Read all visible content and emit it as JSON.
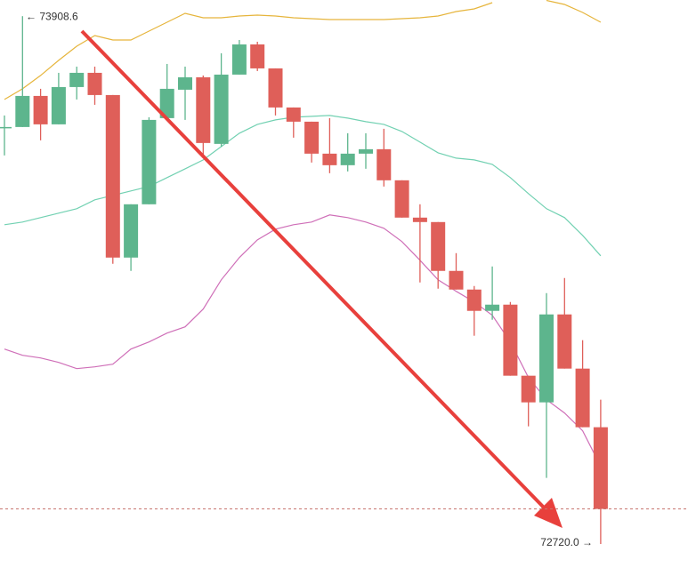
{
  "chart_data": {
    "type": "candlestick",
    "up_color": "#5db58d",
    "down_color": "#df5f59",
    "ylim": [
      72666,
      73945
    ],
    "open": [
      73657,
      73659,
      73729,
      73665,
      73749,
      73781,
      73731,
      73365,
      73485,
      73679,
      73743,
      73771,
      73621,
      73777,
      73845,
      73791,
      73703,
      73671,
      73599,
      73573,
      73599,
      73609,
      73539,
      73455,
      73445,
      73335,
      73293,
      73245,
      73259,
      73099,
      73039,
      73237,
      73115,
      72983
    ],
    "high": [
      73685,
      73908.6,
      73745,
      73781,
      73795,
      73795,
      73731,
      73485,
      73681,
      73801,
      73795,
      73775,
      73825,
      73855,
      73851,
      73791,
      73703,
      73671,
      73679,
      73645,
      73645,
      73655,
      73539,
      73485,
      73445,
      73375,
      73301,
      73345,
      73265,
      73099,
      73285,
      73319,
      73179,
      73045
    ],
    "low": [
      73595,
      73659,
      73629,
      73665,
      73721,
      73709,
      73351,
      73335,
      73485,
      73675,
      73675,
      73595,
      73615,
      73777,
      73785,
      73685,
      73635,
      73579,
      73555,
      73559,
      73565,
      73525,
      73455,
      73309,
      73295,
      73293,
      73189,
      73225,
      73099,
      72985,
      72869,
      73115,
      72983,
      72720.0
    ],
    "close": [
      73659,
      73729,
      73665,
      73749,
      73781,
      73731,
      73365,
      73485,
      73675,
      73745,
      73771,
      73623,
      73777,
      73845,
      73791,
      73703,
      73671,
      73599,
      73573,
      73599,
      73609,
      73539,
      73455,
      73445,
      73335,
      73293,
      73245,
      73259,
      73099,
      73039,
      73237,
      73115,
      72983,
      72799
    ],
    "series": [
      {
        "color": "#e6b53c",
        "values": [
          73721,
          73745,
          73775,
          73809,
          73841,
          73865,
          73855,
          73855,
          73875,
          73895,
          73915,
          73905,
          73905,
          73909,
          73911,
          73909,
          73905,
          73903,
          73901,
          73901,
          73901,
          73901,
          73903,
          73905,
          73909,
          73919,
          73925,
          73939,
          null,
          null,
          73944,
          73935,
          73917,
          73895
        ]
      },
      {
        "color": "#72d1b2",
        "values": [
          73439,
          73445,
          73455,
          73465,
          73475,
          73495,
          73505,
          73515,
          73525,
          73545,
          73565,
          73585,
          73615,
          73645,
          73665,
          73675,
          73681,
          73683,
          73685,
          73679,
          73671,
          73665,
          73649,
          73625,
          73601,
          73589,
          73585,
          73575,
          73545,
          73509,
          73475,
          73455,
          73415,
          73369
        ]
      },
      {
        "color": "#cf6fb8",
        "values": [
          73159,
          73145,
          73139,
          73129,
          73115,
          73119,
          73125,
          73159,
          73175,
          73195,
          73209,
          73249,
          73315,
          73365,
          73405,
          73429,
          73439,
          73445,
          73461,
          73455,
          73445,
          73431,
          73401,
          73359,
          73315,
          73289,
          73265,
          73235,
          73175,
          73095,
          73045,
          73015,
          72975,
          72895
        ]
      }
    ],
    "annotations": [
      {
        "label": "← 73908.6",
        "value": 73908.6
      },
      {
        "label": "72720.0 →",
        "value": 72720.0
      }
    ]
  }
}
